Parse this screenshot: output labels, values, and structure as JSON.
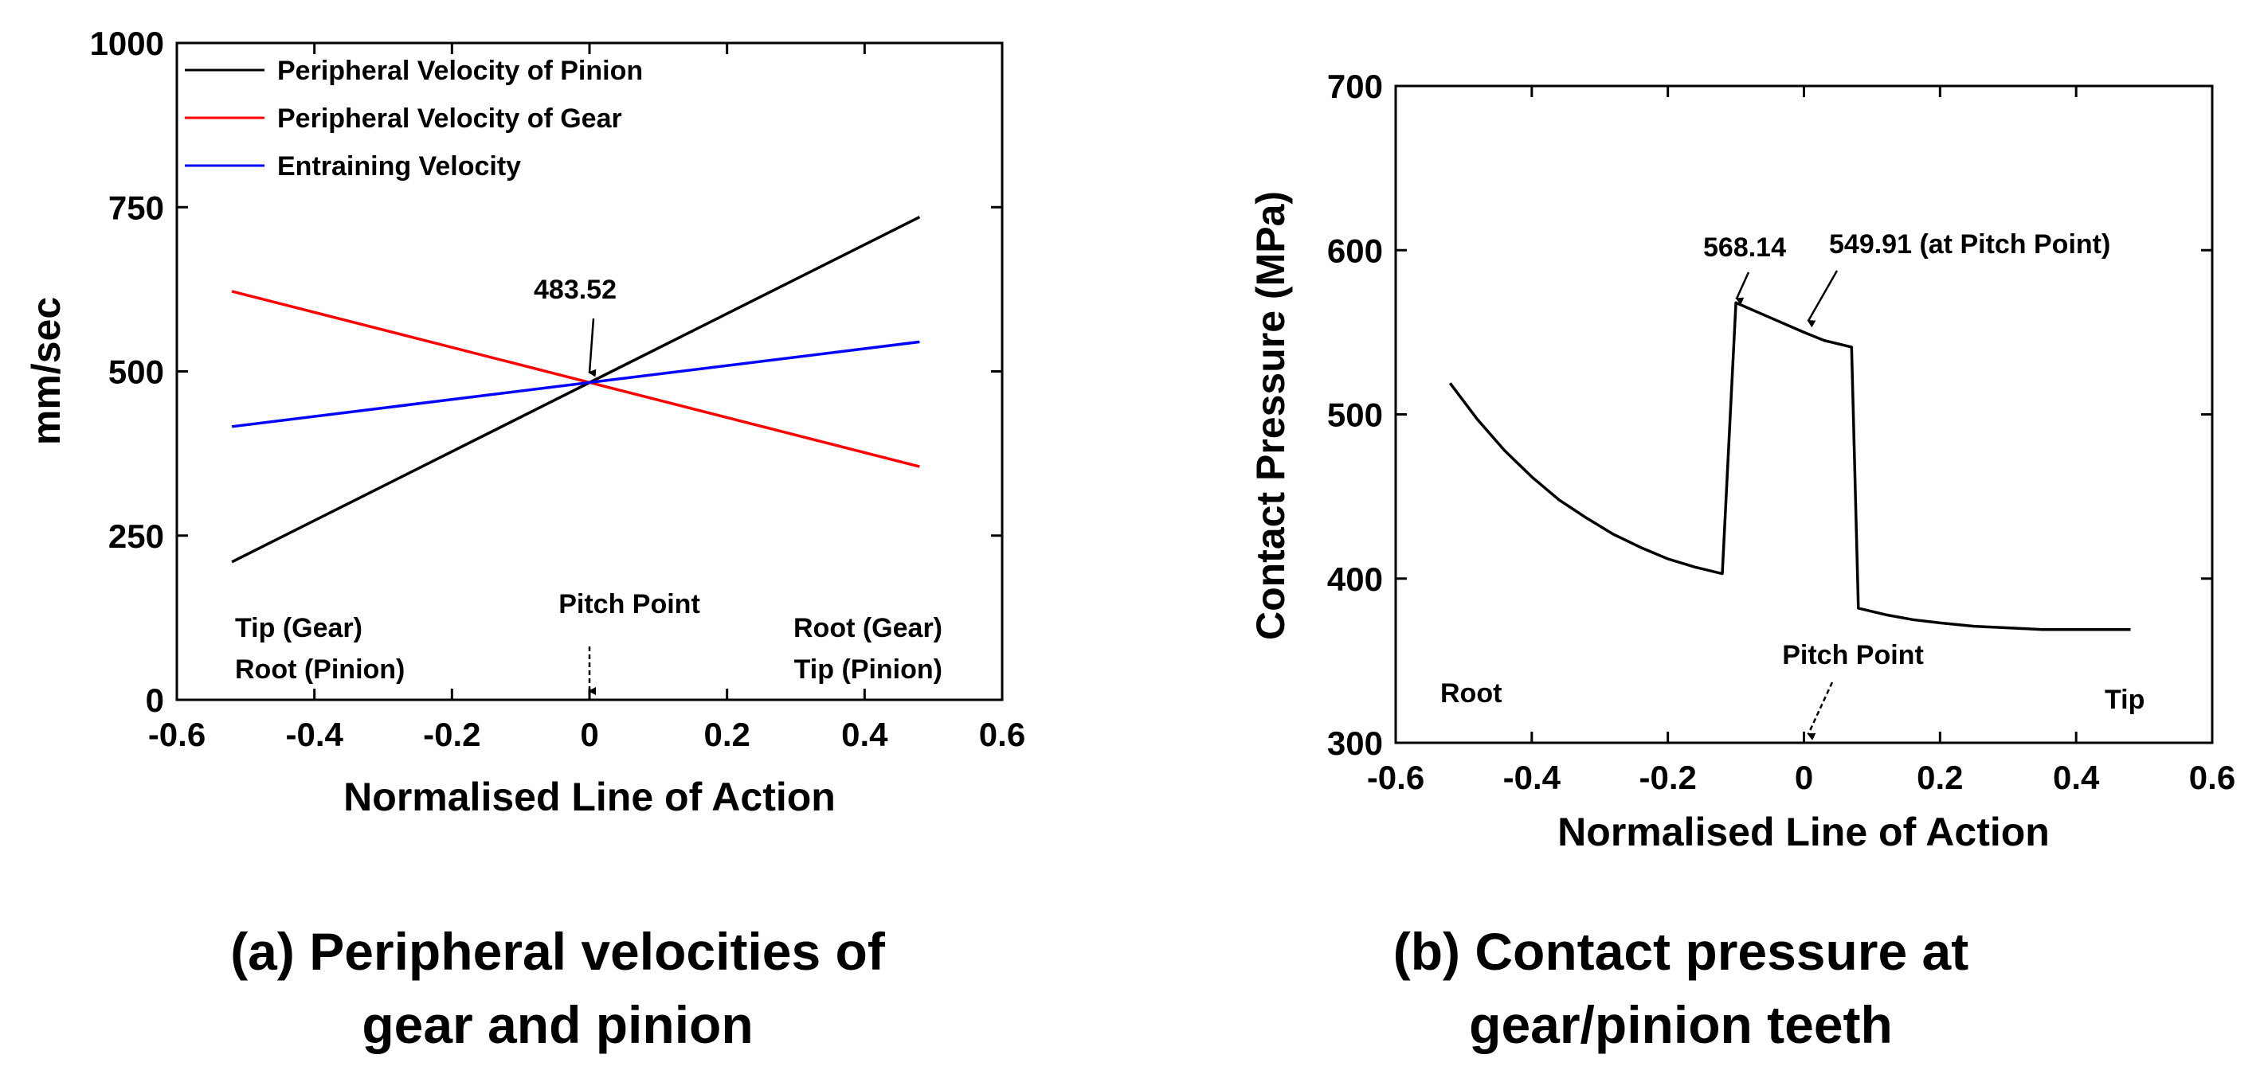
{
  "chart_data": [
    {
      "type": "line",
      "caption": [
        "(a) Peripheral velocities of",
        "gear and pinion"
      ],
      "xlabel": "Normalised Line of Action",
      "ylabel": "mm/sec",
      "xlim": [
        -0.6,
        0.6
      ],
      "ylim": [
        0,
        1000
      ],
      "xticks": [
        -0.6,
        -0.4,
        -0.2,
        0,
        0.2,
        0.4,
        0.6
      ],
      "xtick_labels": [
        "-0.6",
        "-0.4",
        "-0.2",
        "0",
        "0.2",
        "0.4",
        "0.6"
      ],
      "yticks": [
        0,
        250,
        500,
        750,
        1000
      ],
      "ytick_labels": [
        "0",
        "250",
        "500",
        "750",
        "1000"
      ],
      "legend_position": "top-left",
      "series": [
        {
          "name": "Peripheral Velocity of Pinion",
          "color": "#000000",
          "x": [
            -0.52,
            0.48
          ],
          "values": [
            210,
            735
          ]
        },
        {
          "name": "Peripheral Velocity of Gear",
          "color": "#ff0000",
          "x": [
            -0.52,
            0.48
          ],
          "values": [
            622,
            355
          ]
        },
        {
          "name": "Entraining Velocity",
          "color": "#0000ff",
          "x": [
            -0.52,
            0.48
          ],
          "values": [
            416,
            545
          ]
        }
      ],
      "annotations": {
        "intersection": {
          "text": "483.52",
          "x": 0,
          "y": 483.52
        },
        "pitch_point": {
          "text": "Pitch Point",
          "x": 0
        },
        "left": [
          "Tip (Gear)",
          "Root (Pinion)"
        ],
        "right": [
          "Root (Gear)",
          "Tip (Pinion)"
        ]
      }
    },
    {
      "type": "line",
      "caption": [
        "(b) Contact pressure at",
        "gear/pinion teeth"
      ],
      "xlabel": "Normalised Line of Action",
      "ylabel": "Contact Pressure (MPa)",
      "xlim": [
        -0.6,
        0.6
      ],
      "ylim": [
        300,
        700
      ],
      "xticks": [
        -0.6,
        -0.4,
        -0.2,
        0,
        0.2,
        0.4,
        0.6
      ],
      "xtick_labels": [
        "-0.6",
        "-0.4",
        "-0.2",
        "0",
        "0.2",
        "0.4",
        "0.6"
      ],
      "yticks": [
        300,
        400,
        500,
        600,
        700
      ],
      "ytick_labels": [
        "300",
        "400",
        "500",
        "600",
        "700"
      ],
      "series": [
        {
          "name": "Contact Pressure",
          "color": "#000000",
          "x": [
            -0.52,
            -0.48,
            -0.44,
            -0.4,
            -0.36,
            -0.32,
            -0.28,
            -0.24,
            -0.2,
            -0.16,
            -0.12,
            -0.1,
            -0.05,
            0,
            0.03,
            0.07,
            0.08,
            0.12,
            0.16,
            0.2,
            0.25,
            0.3,
            0.35,
            0.4,
            0.48
          ],
          "values": [
            519,
            497,
            478,
            462,
            448,
            437,
            427,
            419,
            412,
            407,
            403,
            568,
            559,
            550,
            545,
            541,
            382,
            378,
            375,
            373,
            371,
            370,
            369,
            369,
            369
          ]
        }
      ],
      "annotations": {
        "peak": {
          "text": "568.14",
          "x": -0.1,
          "y": 568.14
        },
        "pitch_value": {
          "text": "549.91 (at Pitch Point)",
          "x": 0,
          "y": 549.91
        },
        "pitch_point": {
          "text": "Pitch Point",
          "x": 0
        },
        "left": "Root",
        "right": "Tip"
      }
    }
  ]
}
